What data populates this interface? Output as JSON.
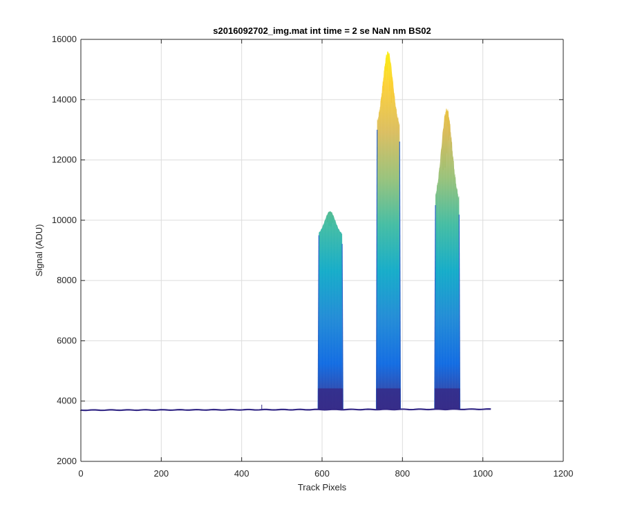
{
  "chart_data": {
    "type": "area",
    "title": "s2016092702_img.mat int time = 2 se  NaN nm BS02",
    "xlabel": "Track Pixels",
    "ylabel": "Signal (ADU)",
    "xlim": [
      0,
      1200
    ],
    "ylim": [
      2000,
      16000
    ],
    "xticks": [
      0,
      200,
      400,
      600,
      800,
      1000,
      1200
    ],
    "yticks": [
      2000,
      4000,
      6000,
      8000,
      10000,
      12000,
      14000,
      16000
    ],
    "grid": true,
    "colormap": "parula",
    "colormap_stops": [
      "#352a87",
      "#0363e1",
      "#1485d4",
      "#06a7c6",
      "#38b99e",
      "#92bf73",
      "#d9ba56",
      "#fcce2e",
      "#f9fb0e"
    ],
    "baseline_y": 3720,
    "baseline_x_end": 1023,
    "spike": {
      "x": 450,
      "y": 3880
    },
    "peaks": [
      {
        "x_start": 590,
        "x_end": 652,
        "edge_height": 9500,
        "top_height": 10300
      },
      {
        "x_start": 735,
        "x_end": 795,
        "edge_height": 13000,
        "top_height": 15600
      },
      {
        "x_start": 880,
        "x_end": 943,
        "edge_height": 10500,
        "top_height": 13700
      }
    ],
    "series": [
      {
        "values": [
          [
            0,
            3700
          ],
          [
            100,
            3705
          ],
          [
            200,
            3710
          ],
          [
            300,
            3715
          ],
          [
            400,
            3720
          ],
          [
            450,
            3880
          ],
          [
            452,
            3720
          ],
          [
            500,
            3725
          ],
          [
            580,
            3730
          ],
          [
            590,
            3760
          ],
          [
            593,
            9400
          ],
          [
            600,
            9700
          ],
          [
            610,
            9900
          ],
          [
            620,
            10150
          ],
          [
            625,
            10300
          ],
          [
            632,
            10100
          ],
          [
            640,
            10000
          ],
          [
            648,
            9700
          ],
          [
            652,
            3780
          ],
          [
            700,
            3760
          ],
          [
            735,
            3780
          ],
          [
            738,
            12900
          ],
          [
            745,
            13400
          ],
          [
            752,
            14200
          ],
          [
            760,
            14800
          ],
          [
            768,
            15200
          ],
          [
            772,
            15500
          ],
          [
            778,
            15600
          ],
          [
            785,
            15200
          ],
          [
            790,
            14500
          ],
          [
            794,
            14000
          ],
          [
            797,
            3780
          ],
          [
            850,
            3770
          ],
          [
            880,
            3780
          ],
          [
            883,
            10400
          ],
          [
            890,
            12200
          ],
          [
            900,
            12800
          ],
          [
            907,
            13300
          ],
          [
            912,
            13700
          ],
          [
            918,
            13100
          ],
          [
            925,
            12600
          ],
          [
            935,
            12000
          ],
          [
            942,
            11000
          ],
          [
            945,
            3760
          ],
          [
            1000,
            3740
          ],
          [
            1023,
            3730
          ]
        ]
      }
    ]
  }
}
